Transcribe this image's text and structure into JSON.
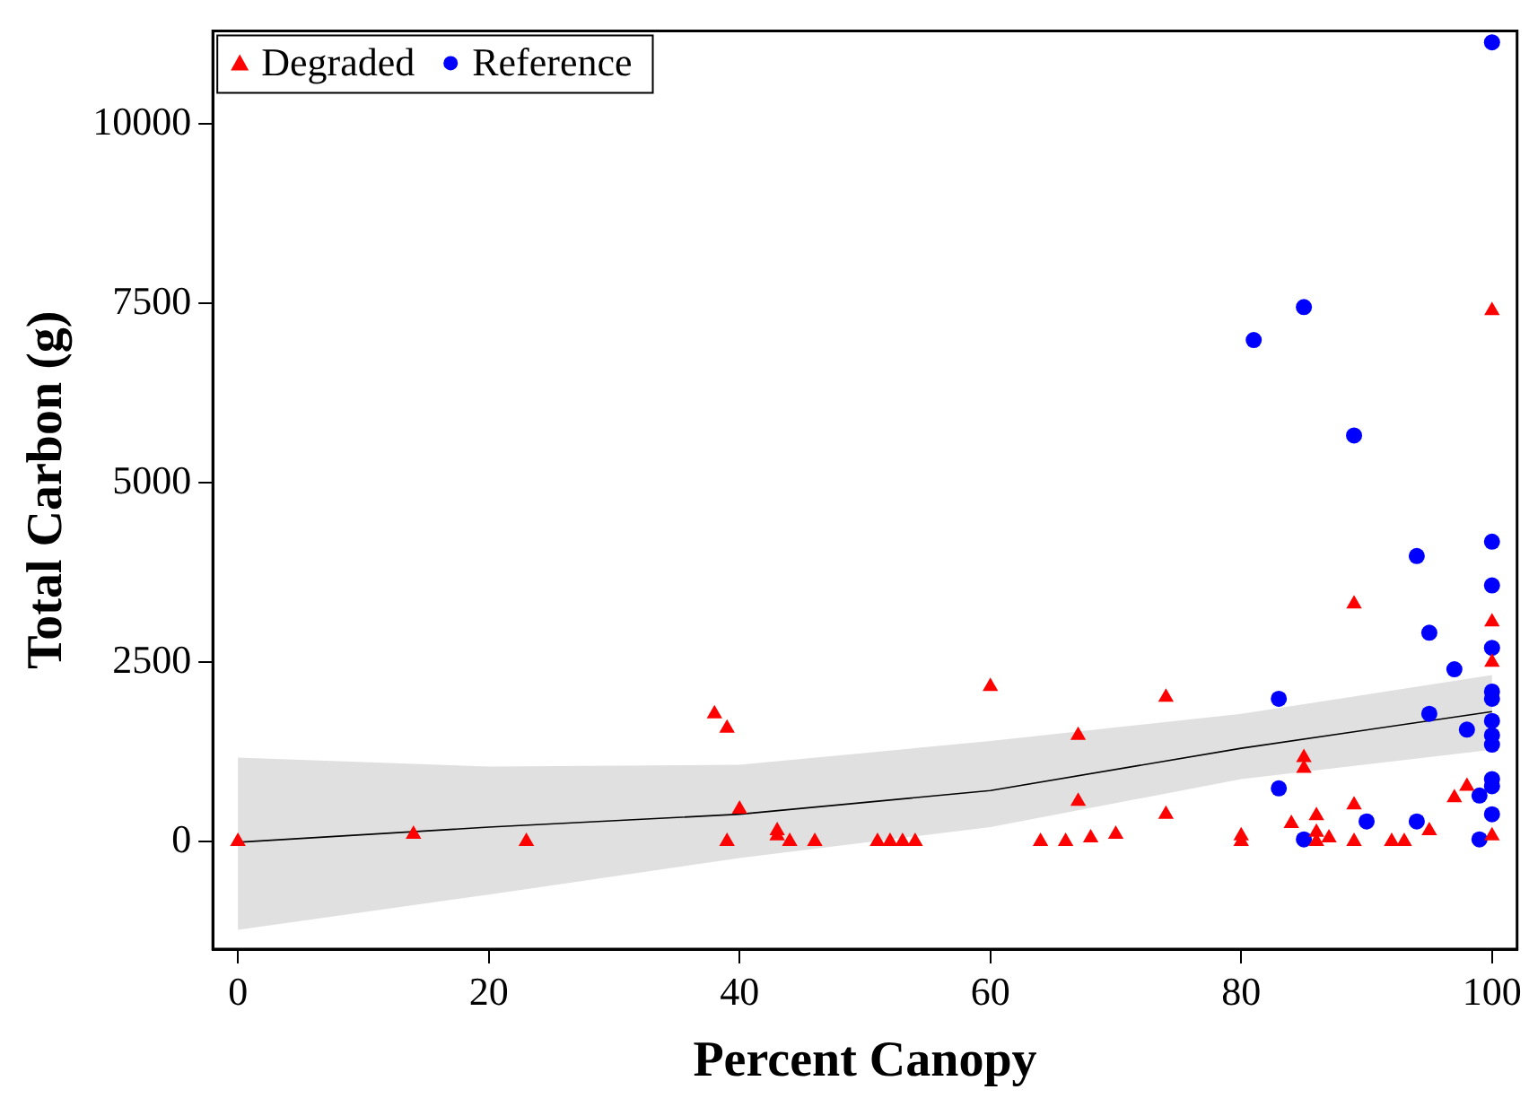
{
  "chart_data": {
    "type": "scatter",
    "xlabel": "Percent Canopy",
    "ylabel": "Total Carbon (g)",
    "xlim": [
      -2,
      102
    ],
    "ylim": [
      -1500,
      11300
    ],
    "xticks": [
      0,
      20,
      40,
      60,
      80,
      100
    ],
    "yticks": [
      0,
      2500,
      5000,
      7500,
      10000
    ],
    "grid": false,
    "legend": "top left",
    "series": [
      {
        "name": "Degraded",
        "color": "#ff0000",
        "marker": "triangle",
        "x": [
          0,
          14,
          23,
          38,
          39,
          39,
          40,
          43,
          43,
          44,
          46,
          51,
          52,
          53,
          54,
          60,
          64,
          66,
          67,
          67,
          68,
          70,
          74,
          74,
          80,
          80,
          84,
          85,
          85,
          86,
          86,
          86,
          87,
          89,
          89,
          89,
          92,
          93,
          95,
          97,
          98,
          100,
          100,
          100,
          100
        ],
        "values": [
          0,
          100,
          0,
          1780,
          1580,
          0,
          450,
          150,
          80,
          0,
          0,
          0,
          0,
          0,
          0,
          2160,
          0,
          0,
          1480,
          560,
          50,
          100,
          2010,
          380,
          80,
          0,
          250,
          1170,
          1020,
          360,
          130,
          0,
          50,
          510,
          3310,
          0,
          0,
          0,
          150,
          610,
          770,
          7400,
          3060,
          2500,
          80
        ]
      },
      {
        "name": "Reference",
        "color": "#0000ff",
        "marker": "circle",
        "x": [
          81,
          85,
          89,
          100,
          94,
          95,
          97,
          100,
          100,
          100,
          100,
          100,
          100,
          100,
          100,
          100,
          100,
          100,
          83,
          83,
          95,
          98,
          90,
          94,
          99,
          99,
          85
        ],
        "values": [
          6990,
          7450,
          5660,
          11140,
          3980,
          2910,
          2400,
          4180,
          3570,
          2700,
          2090,
          1990,
          1680,
          1480,
          1350,
          870,
          770,
          380,
          1990,
          740,
          1780,
          1560,
          280,
          280,
          30,
          640,
          30
        ]
      },
      {
        "type": "line",
        "color": "#000000",
        "marker": "none",
        "x": [
          0,
          20,
          40,
          60,
          80,
          100
        ],
        "values": [
          -10,
          200,
          380,
          710,
          1300,
          1810
        ],
        "lower": [
          -1230,
          -740,
          -230,
          200,
          870,
          1280
        ],
        "upper": [
          1170,
          1045,
          1070,
          1400,
          1780,
          2320
        ]
      }
    ]
  }
}
